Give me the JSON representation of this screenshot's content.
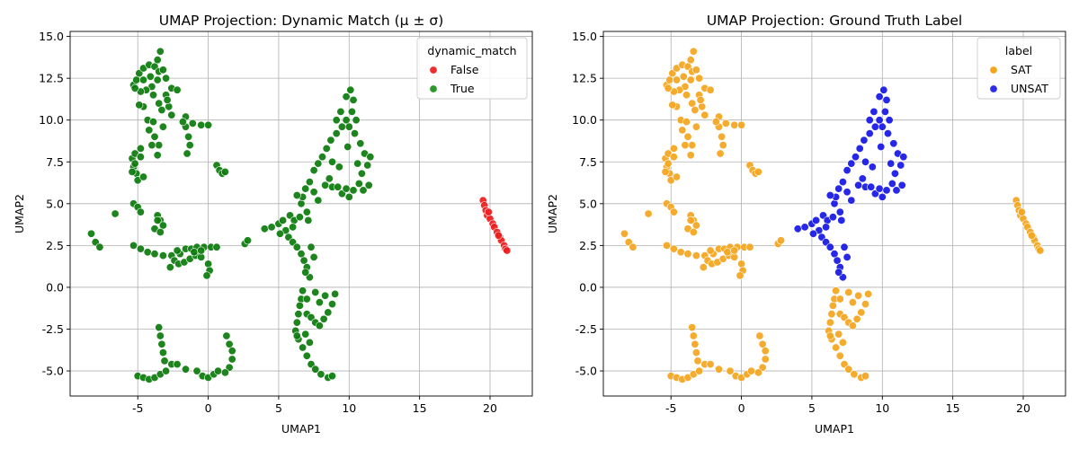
{
  "chart_data": [
    {
      "type": "scatter",
      "title": "UMAP Projection: Dynamic Match (μ ± σ)",
      "xlabel": "UMAP1",
      "ylabel": "UMAP2",
      "xlim": [
        -9.8,
        23.0
      ],
      "ylim": [
        -6.5,
        15.3
      ],
      "xticks": [
        -5,
        0,
        5,
        10,
        15,
        20
      ],
      "yticks": [
        -5.0,
        -2.5,
        0.0,
        2.5,
        5.0,
        7.5,
        10.0,
        12.5,
        15.0
      ],
      "grid": true,
      "legend": {
        "title": "dynamic_match",
        "placement": "top-right",
        "entries": [
          {
            "label": "False",
            "color": "#ee2d2d"
          },
          {
            "label": "True",
            "color": "#2a9a2a"
          }
        ]
      },
      "groups": [
        {
          "label": "True",
          "color": "#0b7b0b",
          "clusters": [
            "c_upleft",
            "c_leftside",
            "c_midleft",
            "c_small",
            "c_bottomleft",
            "c_diag",
            "c_midtri",
            "c_rightloop",
            "c_bottommid"
          ]
        },
        {
          "label": "False",
          "color": "#ee1c1c",
          "clusters": [
            "c_far"
          ]
        }
      ]
    },
    {
      "type": "scatter",
      "title": "UMAP Projection: Ground Truth Label",
      "xlabel": "UMAP1",
      "ylabel": "UMAP2",
      "xlim": [
        -9.8,
        23.0
      ],
      "ylim": [
        -6.5,
        15.3
      ],
      "xticks": [
        -5,
        0,
        5,
        10,
        15,
        20
      ],
      "yticks": [
        -5.0,
        -2.5,
        0.0,
        2.5,
        5.0,
        7.5,
        10.0,
        12.5,
        15.0
      ],
      "grid": true,
      "legend": {
        "title": "label",
        "placement": "top-right",
        "entries": [
          {
            "label": "SAT",
            "color": "#f4a51c"
          },
          {
            "label": "UNSAT",
            "color": "#2d2de6"
          }
        ]
      },
      "groups": [
        {
          "label": "SAT",
          "color": "#f4a51c",
          "clusters": [
            "c_upleft",
            "c_leftside",
            "c_midleft",
            "c_small",
            "c_bottomleft",
            "c_bottommid",
            "c_far"
          ]
        },
        {
          "label": "UNSAT",
          "color": "#1515e6",
          "clusters": [
            "c_diag",
            "c_midtri",
            "c_rightloop"
          ]
        }
      ]
    }
  ],
  "clusters": {
    "c_upleft": [
      [
        -5.3,
        12.1
      ],
      [
        -5.1,
        12.4
      ],
      [
        -4.9,
        12.8
      ],
      [
        -4.6,
        13.1
      ],
      [
        -4.2,
        13.3
      ],
      [
        -3.8,
        13.2
      ],
      [
        -3.5,
        12.9
      ],
      [
        -3.6,
        12.4
      ],
      [
        -4.0,
        12.0
      ],
      [
        -4.4,
        11.8
      ],
      [
        -4.8,
        11.7
      ],
      [
        -5.2,
        11.9
      ],
      [
        -3.4,
        14.1
      ],
      [
        -3.6,
        13.6
      ],
      [
        -3.2,
        13.0
      ],
      [
        -3.0,
        12.5
      ],
      [
        -4.6,
        12.4
      ],
      [
        -4.1,
        12.6
      ],
      [
        -3.9,
        11.5
      ],
      [
        -3.5,
        11.0
      ],
      [
        -3.0,
        11.5
      ],
      [
        -2.6,
        11.9
      ],
      [
        -2.2,
        11.8
      ],
      [
        -2.8,
        10.8
      ],
      [
        -2.6,
        10.3
      ],
      [
        -3.3,
        10.6
      ],
      [
        -4.6,
        10.8
      ],
      [
        -4.9,
        10.9
      ],
      [
        -4.3,
        10.0
      ],
      [
        -4.2,
        9.4
      ],
      [
        -3.8,
        9.0
      ],
      [
        -3.5,
        8.5
      ],
      [
        -3.6,
        7.9
      ],
      [
        -3.9,
        9.9
      ],
      [
        -3.2,
        9.6
      ],
      [
        -1.6,
        10.2
      ],
      [
        -1.1,
        9.8
      ],
      [
        -0.5,
        9.7
      ],
      [
        0.0,
        9.7
      ],
      [
        -1.6,
        9.6
      ],
      [
        -1.4,
        9.0
      ],
      [
        -1.3,
        8.5
      ],
      [
        -1.5,
        8.0
      ],
      [
        -1.8,
        9.9
      ],
      [
        -4.0,
        8.5
      ],
      [
        -2.9,
        11.2
      ]
    ],
    "c_leftside": [
      [
        -5.4,
        7.7
      ],
      [
        -5.3,
        7.2
      ],
      [
        -5.1,
        6.8
      ],
      [
        -5.0,
        6.4
      ],
      [
        -5.2,
        7.4
      ],
      [
        -5.2,
        8.0
      ],
      [
        -4.8,
        8.3
      ],
      [
        -5.4,
        6.9
      ],
      [
        -4.6,
        6.6
      ],
      [
        -4.8,
        7.8
      ],
      [
        -5.3,
        5.0
      ],
      [
        -5.0,
        4.8
      ],
      [
        -4.8,
        4.5
      ],
      [
        -3.6,
        4.3
      ],
      [
        -3.4,
        4.0
      ],
      [
        -3.2,
        3.7
      ],
      [
        -3.8,
        3.5
      ],
      [
        -3.4,
        3.3
      ],
      [
        -3.6,
        4.0
      ]
    ],
    "c_midleft": [
      [
        -5.3,
        2.5
      ],
      [
        -4.8,
        2.3
      ],
      [
        -4.3,
        2.1
      ],
      [
        -3.8,
        2.0
      ],
      [
        -3.2,
        1.9
      ],
      [
        -2.6,
        1.9
      ],
      [
        -2.0,
        2.0
      ],
      [
        -1.6,
        2.3
      ],
      [
        -1.2,
        2.3
      ],
      [
        -0.8,
        2.4
      ],
      [
        -0.3,
        2.4
      ],
      [
        0.2,
        2.4
      ],
      [
        0.6,
        2.4
      ],
      [
        -2.4,
        1.6
      ],
      [
        -2.1,
        1.4
      ],
      [
        -1.7,
        1.5
      ],
      [
        -1.3,
        1.7
      ],
      [
        -0.9,
        1.9
      ],
      [
        -0.5,
        1.8
      ],
      [
        0.0,
        1.4
      ],
      [
        0.1,
        1.0
      ],
      [
        -0.1,
        0.7
      ],
      [
        -2.7,
        1.2
      ],
      [
        -2.2,
        2.2
      ],
      [
        -1.0,
        2.1
      ],
      [
        -0.5,
        2.2
      ],
      [
        -8.3,
        3.2
      ],
      [
        -8.0,
        2.7
      ],
      [
        -7.7,
        2.4
      ],
      [
        -6.6,
        4.4
      ]
    ],
    "c_small": [
      [
        0.6,
        7.3
      ],
      [
        0.8,
        7.0
      ],
      [
        1.0,
        6.8
      ],
      [
        1.2,
        6.9
      ],
      [
        2.6,
        2.6
      ],
      [
        2.8,
        2.8
      ]
    ],
    "c_bottomleft": [
      [
        -5.0,
        -5.3
      ],
      [
        -4.6,
        -5.4
      ],
      [
        -4.2,
        -5.5
      ],
      [
        -3.8,
        -5.4
      ],
      [
        -3.4,
        -5.2
      ],
      [
        -3.0,
        -5.0
      ],
      [
        -2.6,
        -4.6
      ],
      [
        -2.2,
        -4.6
      ],
      [
        -3.5,
        -2.4
      ],
      [
        -3.4,
        -2.9
      ],
      [
        -3.3,
        -3.4
      ],
      [
        -3.2,
        -3.9
      ],
      [
        -3.1,
        -4.4
      ],
      [
        -1.6,
        -4.9
      ],
      [
        -0.8,
        -5.0
      ],
      [
        -0.4,
        -5.3
      ],
      [
        0.0,
        -5.4
      ],
      [
        0.4,
        -5.2
      ],
      [
        0.7,
        -5.0
      ],
      [
        1.3,
        -2.9
      ],
      [
        1.5,
        -3.4
      ],
      [
        1.7,
        -3.8
      ],
      [
        1.7,
        -4.3
      ],
      [
        1.5,
        -4.8
      ],
      [
        1.2,
        -5.1
      ]
    ],
    "c_diag": [
      [
        4.0,
        3.5
      ],
      [
        4.5,
        3.6
      ],
      [
        5.0,
        3.8
      ],
      [
        5.3,
        4.0
      ],
      [
        5.8,
        4.3
      ],
      [
        6.1,
        4.0
      ],
      [
        5.5,
        3.4
      ],
      [
        5.7,
        3.0
      ],
      [
        6.0,
        2.7
      ],
      [
        6.3,
        2.4
      ],
      [
        6.0,
        3.6
      ],
      [
        5.1,
        3.2
      ],
      [
        6.6,
        2.0
      ],
      [
        6.8,
        1.6
      ],
      [
        7.0,
        1.2
      ],
      [
        7.2,
        0.6
      ],
      [
        6.9,
        0.9
      ],
      [
        7.5,
        1.8
      ],
      [
        7.3,
        2.4
      ]
    ],
    "c_midtri": [
      [
        6.6,
        5.0
      ],
      [
        6.7,
        5.4
      ],
      [
        6.9,
        5.9
      ],
      [
        7.2,
        6.3
      ],
      [
        7.5,
        5.7
      ],
      [
        7.8,
        5.2
      ],
      [
        8.3,
        6.1
      ],
      [
        8.8,
        6.0
      ],
      [
        9.2,
        6.0
      ],
      [
        9.5,
        5.6
      ],
      [
        9.8,
        5.9
      ],
      [
        6.5,
        4.2
      ],
      [
        7.0,
        4.5
      ],
      [
        6.3,
        5.5
      ],
      [
        7.1,
        4.0
      ]
    ],
    "c_rightloop": [
      [
        7.5,
        7.0
      ],
      [
        7.8,
        7.4
      ],
      [
        8.1,
        7.8
      ],
      [
        8.4,
        8.3
      ],
      [
        8.7,
        8.8
      ],
      [
        9.1,
        9.2
      ],
      [
        9.5,
        9.6
      ],
      [
        9.8,
        10.0
      ],
      [
        10.2,
        10.5
      ],
      [
        10.3,
        11.2
      ],
      [
        10.1,
        11.8
      ],
      [
        9.8,
        11.4
      ],
      [
        9.4,
        10.5
      ],
      [
        9.1,
        10.0
      ],
      [
        10.0,
        9.6
      ],
      [
        10.4,
        9.2
      ],
      [
        10.8,
        8.6
      ],
      [
        11.1,
        8.0
      ],
      [
        11.5,
        7.8
      ],
      [
        11.3,
        7.3
      ],
      [
        10.9,
        6.8
      ],
      [
        10.7,
        6.2
      ],
      [
        10.3,
        5.8
      ],
      [
        10.0,
        5.4
      ],
      [
        9.3,
        7.2
      ],
      [
        8.8,
        7.5
      ],
      [
        8.6,
        6.5
      ],
      [
        10.6,
        7.4
      ],
      [
        11.0,
        5.8
      ],
      [
        11.4,
        6.1
      ],
      [
        9.9,
        8.4
      ],
      [
        10.5,
        10.0
      ]
    ],
    "c_bottommid": [
      [
        6.7,
        -0.2
      ],
      [
        6.6,
        -0.7
      ],
      [
        6.5,
        -1.1
      ],
      [
        6.4,
        -1.6
      ],
      [
        6.3,
        -2.1
      ],
      [
        6.2,
        -2.6
      ],
      [
        6.4,
        -3.1
      ],
      [
        6.7,
        -3.6
      ],
      [
        7.0,
        -4.1
      ],
      [
        7.3,
        -4.6
      ],
      [
        7.6,
        -4.9
      ],
      [
        8.0,
        -5.2
      ],
      [
        8.5,
        -5.4
      ],
      [
        8.8,
        -5.3
      ],
      [
        7.0,
        -1.6
      ],
      [
        7.3,
        -1.8
      ],
      [
        7.6,
        -2.1
      ],
      [
        7.9,
        -2.3
      ],
      [
        8.2,
        -1.9
      ],
      [
        8.5,
        -1.5
      ],
      [
        8.8,
        -1.0
      ],
      [
        9.0,
        -0.4
      ],
      [
        7.6,
        -0.3
      ],
      [
        7.9,
        -0.9
      ],
      [
        6.9,
        -2.8
      ],
      [
        7.2,
        -3.3
      ],
      [
        7.0,
        -0.7
      ],
      [
        8.3,
        -0.5
      ],
      [
        6.3,
        -2.9
      ]
    ],
    "c_far": [
      [
        19.5,
        5.2
      ],
      [
        19.6,
        4.9
      ],
      [
        19.7,
        4.6
      ],
      [
        19.8,
        4.3
      ],
      [
        20.0,
        4.1
      ],
      [
        20.2,
        3.8
      ],
      [
        20.3,
        3.6
      ],
      [
        20.5,
        3.3
      ],
      [
        20.7,
        3.0
      ],
      [
        20.8,
        2.8
      ],
      [
        21.0,
        2.5
      ],
      [
        21.1,
        2.3
      ],
      [
        21.2,
        2.2
      ],
      [
        19.9,
        4.5
      ],
      [
        20.6,
        3.1
      ]
    ]
  }
}
